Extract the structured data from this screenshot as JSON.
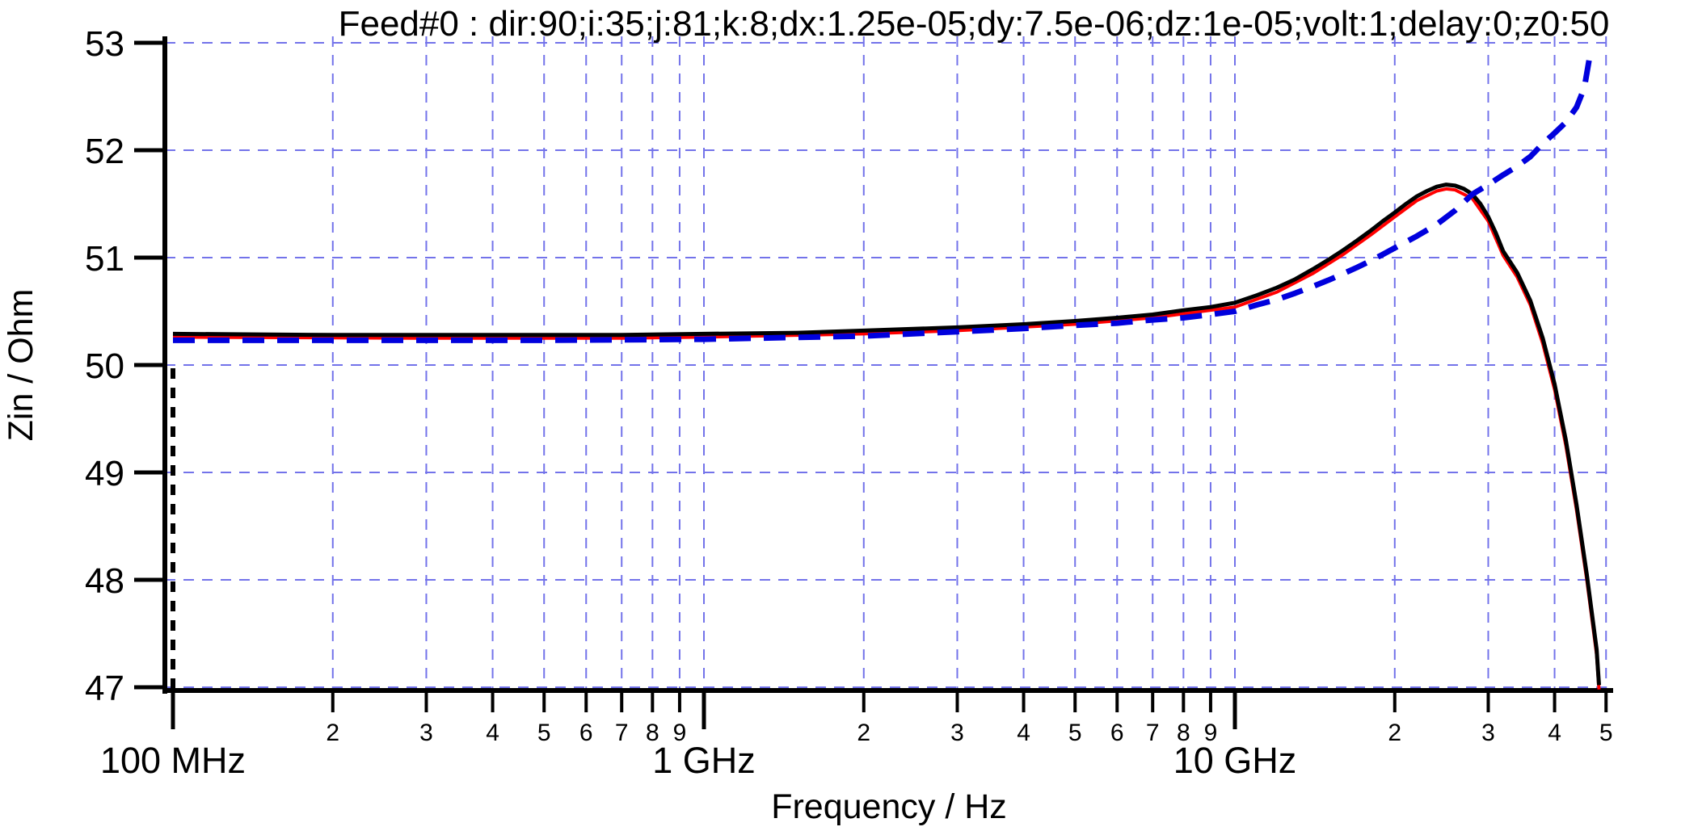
{
  "chart_data": {
    "type": "line",
    "title": "Feed#0 : dir:90;i:35;j:81;k:8;dx:1.25e-05;dy:7.5e-06;dz:1e-05;volt:1;delay:0;z0:50",
    "xlabel": "Frequency / Hz",
    "ylabel": "Zin / Ohm",
    "x_scale": "log",
    "xlim": [
      100000000.0,
      50500000000.0
    ],
    "ylim": [
      47,
      53
    ],
    "grid": {
      "show": true,
      "color": "#7373ea",
      "dash": "13 10",
      "width": 2
    },
    "axis_color": "#000000",
    "y_ticks": [
      {
        "value": 47,
        "label": "47"
      },
      {
        "value": 48,
        "label": "48"
      },
      {
        "value": 49,
        "label": "49"
      },
      {
        "value": 50,
        "label": "50"
      },
      {
        "value": 51,
        "label": "51"
      },
      {
        "value": 52,
        "label": "52"
      },
      {
        "value": 53,
        "label": "53"
      }
    ],
    "x_major_ticks": [
      {
        "value": 100000000.0,
        "label": "100 MHz"
      },
      {
        "value": 1000000000.0,
        "label": "1 GHz"
      },
      {
        "value": 10000000000.0,
        "label": "10 GHz"
      }
    ],
    "x_minor_ticks": [
      {
        "value": 200000000.0,
        "label": "2"
      },
      {
        "value": 300000000.0,
        "label": "3"
      },
      {
        "value": 400000000.0,
        "label": "4"
      },
      {
        "value": 500000000.0,
        "label": "5"
      },
      {
        "value": 600000000.0,
        "label": "6"
      },
      {
        "value": 700000000.0,
        "label": "7"
      },
      {
        "value": 800000000.0,
        "label": "8"
      },
      {
        "value": 900000000.0,
        "label": "9"
      },
      {
        "value": 2000000000.0,
        "label": "2"
      },
      {
        "value": 3000000000.0,
        "label": "3"
      },
      {
        "value": 4000000000.0,
        "label": "4"
      },
      {
        "value": 5000000000.0,
        "label": "5"
      },
      {
        "value": 6000000000.0,
        "label": "6"
      },
      {
        "value": 7000000000.0,
        "label": "7"
      },
      {
        "value": 8000000000.0,
        "label": "8"
      },
      {
        "value": 9000000000.0,
        "label": "9"
      },
      {
        "value": 20000000000.0,
        "label": "2"
      },
      {
        "value": 30000000000.0,
        "label": "3"
      },
      {
        "value": 40000000000.0,
        "label": "4"
      },
      {
        "value": 50000000000.0,
        "label": "5"
      }
    ],
    "start_marker": {
      "freq_hz": 100000000.0,
      "ohm_from": 50.0,
      "ohm_to": 47.0,
      "color": "#000000",
      "dash": "13 11",
      "width": 6
    },
    "series": [
      {
        "name": "zin-red",
        "color": "#ff0000",
        "width": 4,
        "dash": null,
        "points": [
          [
            100000000.0,
            50.26
          ],
          [
            300000000.0,
            50.25
          ],
          [
            700000000.0,
            50.25
          ],
          [
            1000000000.0,
            50.26
          ],
          [
            2000000000.0,
            50.29
          ],
          [
            3000000000.0,
            50.32
          ],
          [
            5000000000.0,
            50.38
          ],
          [
            7000000000.0,
            50.44
          ],
          [
            9000000000.0,
            50.51
          ],
          [
            10000000000.0,
            50.54
          ],
          [
            12000000000.0,
            50.68
          ],
          [
            14000000000.0,
            50.85
          ],
          [
            16000000000.0,
            51.03
          ],
          [
            18000000000.0,
            51.21
          ],
          [
            20000000000.0,
            51.38
          ],
          [
            22000000000.0,
            51.53
          ],
          [
            24000000000.0,
            51.62
          ],
          [
            25000000000.0,
            51.64
          ],
          [
            26000000000.0,
            51.63
          ],
          [
            28000000000.0,
            51.55
          ],
          [
            30000000000.0,
            51.34
          ],
          [
            32000000000.0,
            51.02
          ],
          [
            34000000000.0,
            50.82
          ],
          [
            36000000000.0,
            50.56
          ],
          [
            38000000000.0,
            50.2
          ],
          [
            40000000000.0,
            49.77
          ],
          [
            42000000000.0,
            49.25
          ],
          [
            44000000000.0,
            48.65
          ],
          [
            46000000000.0,
            48.0
          ],
          [
            48000000000.0,
            47.3
          ],
          [
            48500000000.0,
            46.98
          ]
        ]
      },
      {
        "name": "zin-black",
        "color": "#000000",
        "width": 5,
        "dash": null,
        "points": [
          [
            100000000.0,
            50.29
          ],
          [
            200000000.0,
            50.28
          ],
          [
            300000000.0,
            50.28
          ],
          [
            500000000.0,
            50.28
          ],
          [
            700000000.0,
            50.28
          ],
          [
            1000000000.0,
            50.29
          ],
          [
            1500000000.0,
            50.3
          ],
          [
            2000000000.0,
            50.32
          ],
          [
            3000000000.0,
            50.35
          ],
          [
            4000000000.0,
            50.38
          ],
          [
            5000000000.0,
            50.41
          ],
          [
            6000000000.0,
            50.44
          ],
          [
            7000000000.0,
            50.47
          ],
          [
            8000000000.0,
            50.51
          ],
          [
            9000000000.0,
            50.54
          ],
          [
            10000000000.0,
            50.58
          ],
          [
            11000000000.0,
            50.65
          ],
          [
            12000000000.0,
            50.72
          ],
          [
            13000000000.0,
            50.8
          ],
          [
            14000000000.0,
            50.89
          ],
          [
            15000000000.0,
            50.98
          ],
          [
            16000000000.0,
            51.07
          ],
          [
            17000000000.0,
            51.16
          ],
          [
            18000000000.0,
            51.25
          ],
          [
            19000000000.0,
            51.34
          ],
          [
            20000000000.0,
            51.42
          ],
          [
            21000000000.0,
            51.5
          ],
          [
            22000000000.0,
            51.57
          ],
          [
            23000000000.0,
            51.62
          ],
          [
            24000000000.0,
            51.66
          ],
          [
            25000000000.0,
            51.68
          ],
          [
            26000000000.0,
            51.67
          ],
          [
            27000000000.0,
            51.64
          ],
          [
            28000000000.0,
            51.59
          ],
          [
            29000000000.0,
            51.5
          ],
          [
            30000000000.0,
            51.38
          ],
          [
            31000000000.0,
            51.23
          ],
          [
            32000000000.0,
            51.06
          ],
          [
            34000000000.0,
            50.86
          ],
          [
            36000000000.0,
            50.6
          ],
          [
            38000000000.0,
            50.25
          ],
          [
            40000000000.0,
            49.82
          ],
          [
            42000000000.0,
            49.3
          ],
          [
            44000000000.0,
            48.7
          ],
          [
            46000000000.0,
            48.05
          ],
          [
            48000000000.0,
            47.35
          ],
          [
            48500000000.0,
            47.02
          ]
        ]
      },
      {
        "name": "zin-blue-dashed",
        "color": "#0000dd",
        "width": 7,
        "dash": "27 16",
        "points": [
          [
            100000000.0,
            50.23
          ],
          [
            300000000.0,
            50.23
          ],
          [
            500000000.0,
            50.23
          ],
          [
            1000000000.0,
            50.24
          ],
          [
            2000000000.0,
            50.27
          ],
          [
            3000000000.0,
            50.31
          ],
          [
            4000000000.0,
            50.34
          ],
          [
            5000000000.0,
            50.37
          ],
          [
            6000000000.0,
            50.39
          ],
          [
            7000000000.0,
            50.42
          ],
          [
            8000000000.0,
            50.44
          ],
          [
            9000000000.0,
            50.47
          ],
          [
            10000000000.0,
            50.5
          ],
          [
            11000000000.0,
            50.56
          ],
          [
            12000000000.0,
            50.61
          ],
          [
            13000000000.0,
            50.67
          ],
          [
            14000000000.0,
            50.73
          ],
          [
            15000000000.0,
            50.79
          ],
          [
            16000000000.0,
            50.85
          ],
          [
            17000000000.0,
            50.91
          ],
          [
            18000000000.0,
            50.97
          ],
          [
            19000000000.0,
            51.03
          ],
          [
            20000000000.0,
            51.09
          ],
          [
            22000000000.0,
            51.2
          ],
          [
            24000000000.0,
            51.31
          ],
          [
            26000000000.0,
            51.44
          ],
          [
            28000000000.0,
            51.59
          ],
          [
            30000000000.0,
            51.68
          ],
          [
            32000000000.0,
            51.77
          ],
          [
            34000000000.0,
            51.85
          ],
          [
            36000000000.0,
            51.94
          ],
          [
            38000000000.0,
            52.06
          ],
          [
            40000000000.0,
            52.16
          ],
          [
            42000000000.0,
            52.26
          ],
          [
            44000000000.0,
            52.4
          ],
          [
            45500000000.0,
            52.58
          ],
          [
            46500000000.0,
            52.85
          ]
        ]
      }
    ]
  }
}
